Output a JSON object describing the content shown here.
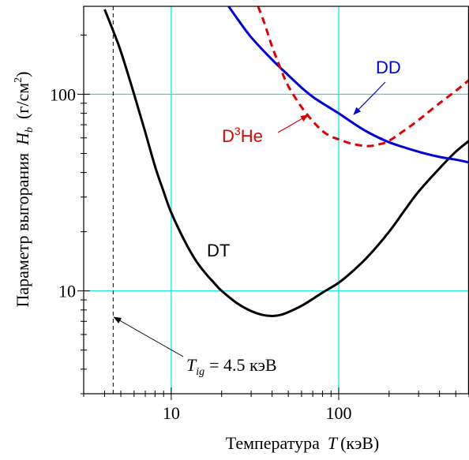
{
  "chart_data": {
    "type": "line",
    "title": "",
    "xlabel": {
      "prefix": "Температура",
      "var": "T",
      "unit": "(кэВ)"
    },
    "ylabel": {
      "prefix": "Параметр выгорания",
      "var": "H",
      "sub": "b",
      "unit_open": "(г/см",
      "unit_sup": "2",
      "unit_close": ")"
    },
    "x_scale": "log",
    "y_scale": "log",
    "xlim": [
      3.0,
      600
    ],
    "ylim": [
      3.0,
      280
    ],
    "x_ticks": [
      {
        "value": 10,
        "label": "10"
      },
      {
        "value": 100,
        "label": "100"
      }
    ],
    "y_ticks": [
      {
        "value": 10,
        "label": "10"
      },
      {
        "value": 100,
        "label": "100"
      }
    ],
    "grid": {
      "x": [
        10,
        100
      ],
      "y": [
        10,
        100
      ],
      "color": "#00e5e5"
    },
    "series": [
      {
        "name": "DT",
        "color": "#000000",
        "dash": false,
        "x": [
          4.0,
          4.5,
          5.0,
          6.0,
          7.0,
          8.0,
          9.0,
          10.0,
          12.0,
          14.0,
          16.0,
          18.0,
          20.0,
          25.0,
          30.0,
          35.0,
          40.0,
          45.0,
          50.0,
          60.0,
          70.0,
          80.0,
          100.0,
          120.0,
          150.0,
          200.0,
          250.0,
          300.0,
          400.0,
          500.0,
          600.0
        ],
        "y": [
          270,
          210,
          165,
          100,
          64,
          43,
          32,
          25,
          18,
          14.3,
          12.3,
          11.0,
          10.0,
          8.6,
          7.9,
          7.55,
          7.45,
          7.55,
          7.8,
          8.4,
          9.1,
          9.8,
          11.0,
          12.5,
          15.0,
          20.0,
          26.0,
          32.0,
          42.0,
          51.0,
          58.0
        ]
      },
      {
        "name": "DD",
        "color": "#0000dd",
        "dash": false,
        "x": [
          22.0,
          25.0,
          30.0,
          40.0,
          50.0,
          60.0,
          70.0,
          80.0,
          100.0,
          120.0,
          150.0,
          200.0,
          300.0,
          400.0,
          500.0,
          600.0
        ],
        "y": [
          280,
          240,
          195,
          150,
          125,
          108,
          97,
          90,
          80,
          72,
          64,
          57,
          51,
          48,
          46.5,
          45.0
        ]
      },
      {
        "name": "D³He",
        "color": "#dd0000",
        "dash": true,
        "x": [
          33.0,
          36.0,
          40.0,
          45.0,
          50.0,
          60.0,
          70.0,
          80.0,
          90.0,
          100.0,
          120.0,
          150.0,
          180.0,
          200.0,
          250.0,
          300.0,
          400.0,
          500.0,
          600.0
        ],
        "y": [
          280,
          230,
          175,
          135,
          110,
          86,
          73,
          65,
          61,
          59,
          56,
          54.5,
          56,
          58,
          66,
          74,
          90,
          104,
          118
        ]
      }
    ],
    "labels": [
      {
        "text": "DT",
        "color": "#000000"
      },
      {
        "text": "DD",
        "color": "#0000dd"
      },
      {
        "text_main": "D",
        "text_sup": "3",
        "text_tail": "He",
        "color": "#dd0000"
      }
    ],
    "annotation": {
      "var": "T",
      "sub": "ig",
      "text": "= 4.5 кэВ",
      "x_value": 4.5
    }
  }
}
